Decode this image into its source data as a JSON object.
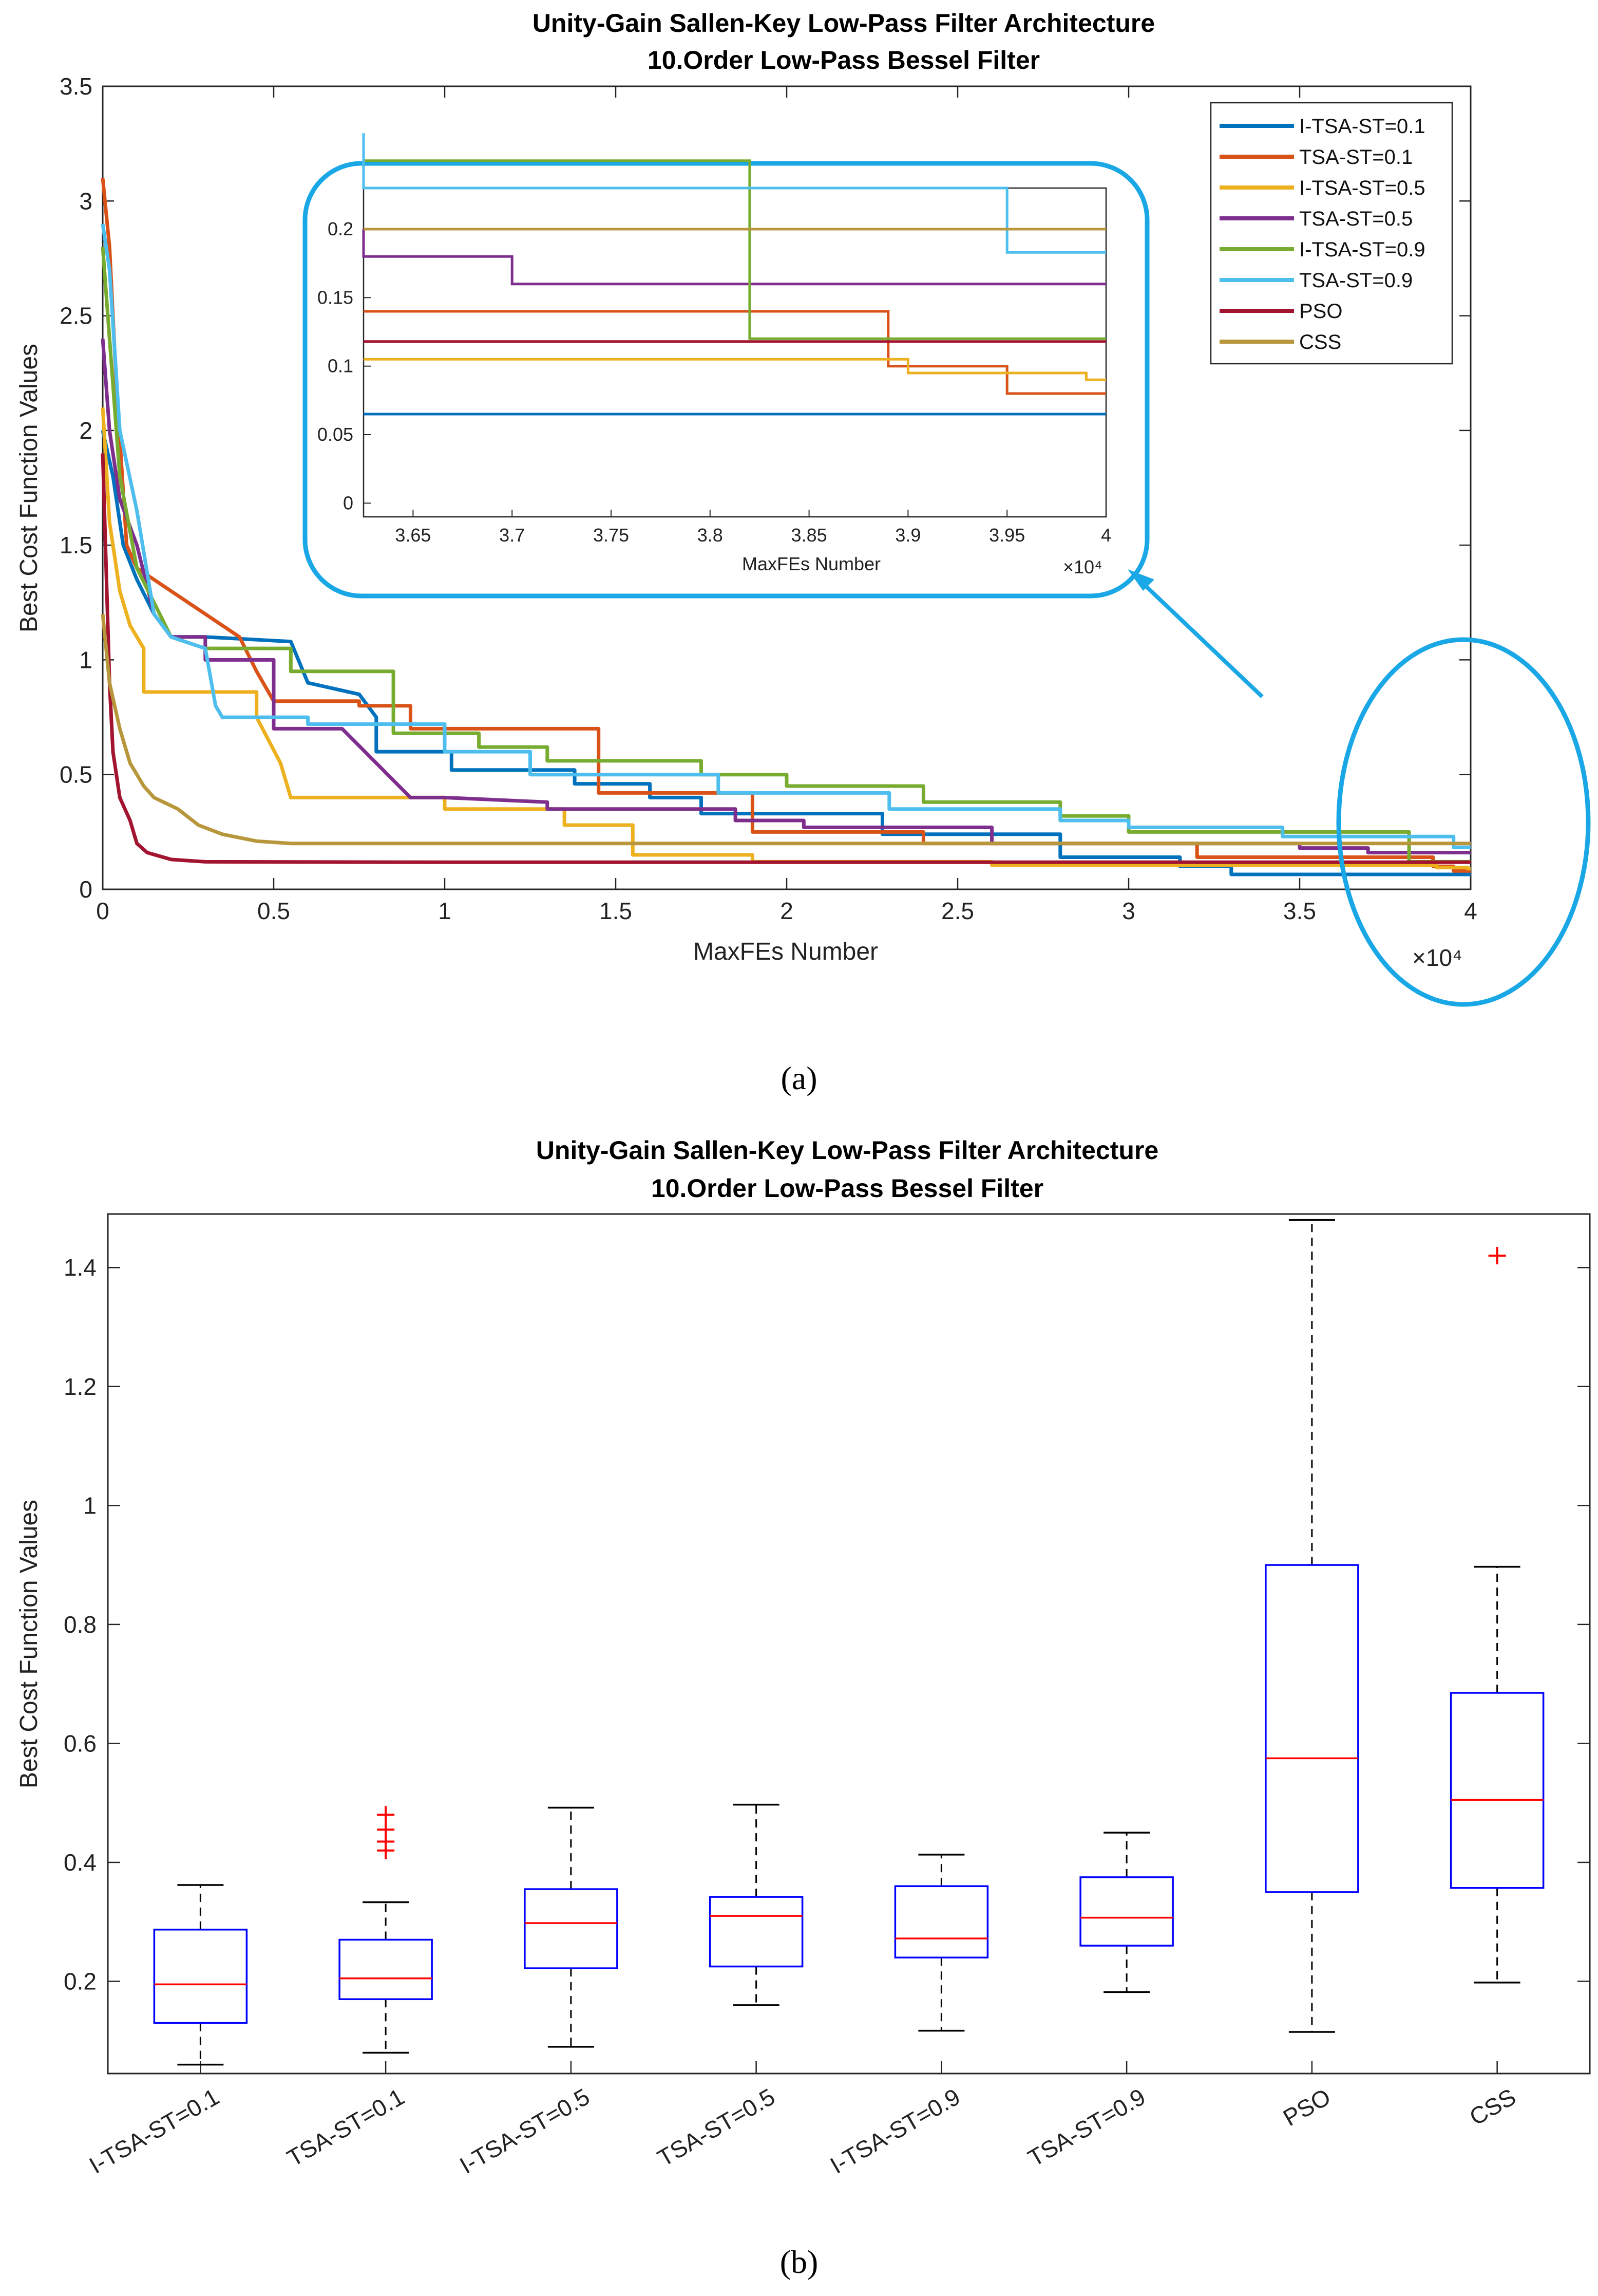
{
  "chart_data": [
    {
      "type": "line",
      "title": "Unity-Gain Sallen-Key Low-Pass Filter Architecture",
      "subtitle": "10.Order Low-Pass Bessel Filter",
      "xlabel": "MaxFEs Number",
      "ylabel": "Best Cost Function Values",
      "x_exponent_label": "×10⁴",
      "xlim": [
        0,
        4
      ],
      "ylim": [
        0,
        3.5
      ],
      "xticks": [
        "0",
        "0.5",
        "1",
        "1.5",
        "2",
        "2.5",
        "3",
        "3.5",
        "4"
      ],
      "yticks": [
        "0",
        "0.5",
        "1",
        "1.5",
        "2",
        "2.5",
        "3",
        "3.5"
      ],
      "legend_position": "top-right",
      "series": [
        {
          "name": "I-TSA-ST=0.1",
          "color": "#0072BD",
          "points": [
            [
              0,
              2.0
            ],
            [
              0.03,
              1.8
            ],
            [
              0.06,
              1.5
            ],
            [
              0.1,
              1.35
            ],
            [
              0.15,
              1.2
            ],
            [
              0.2,
              1.1
            ],
            [
              0.3,
              1.1
            ],
            [
              0.55,
              1.08
            ],
            [
              0.6,
              0.9
            ],
            [
              0.75,
              0.85
            ],
            [
              0.8,
              0.75
            ],
            [
              0.8,
              0.6
            ],
            [
              1.02,
              0.6
            ],
            [
              1.02,
              0.52
            ],
            [
              1.38,
              0.52
            ],
            [
              1.38,
              0.46
            ],
            [
              1.6,
              0.46
            ],
            [
              1.6,
              0.4
            ],
            [
              1.75,
              0.4
            ],
            [
              1.75,
              0.33
            ],
            [
              2.28,
              0.33
            ],
            [
              2.28,
              0.24
            ],
            [
              2.8,
              0.24
            ],
            [
              2.8,
              0.14
            ],
            [
              3.15,
              0.14
            ],
            [
              3.15,
              0.1
            ],
            [
              3.3,
              0.1
            ],
            [
              3.3,
              0.065
            ],
            [
              4.0,
              0.065
            ]
          ]
        },
        {
          "name": "TSA-ST=0.1",
          "color": "#D95319",
          "points": [
            [
              0,
              3.1
            ],
            [
              0.02,
              2.8
            ],
            [
              0.04,
              2.2
            ],
            [
              0.07,
              1.5
            ],
            [
              0.1,
              1.4
            ],
            [
              0.2,
              1.3
            ],
            [
              0.3,
              1.2
            ],
            [
              0.4,
              1.1
            ],
            [
              0.45,
              0.95
            ],
            [
              0.5,
              0.82
            ],
            [
              0.75,
              0.82
            ],
            [
              0.75,
              0.8
            ],
            [
              0.9,
              0.8
            ],
            [
              0.9,
              0.7
            ],
            [
              1.45,
              0.7
            ],
            [
              1.45,
              0.67
            ],
            [
              1.45,
              0.67
            ],
            [
              1.45,
              0.42
            ],
            [
              1.9,
              0.42
            ],
            [
              1.9,
              0.25
            ],
            [
              2.4,
              0.25
            ],
            [
              2.4,
              0.2
            ],
            [
              3.2,
              0.2
            ],
            [
              3.2,
              0.14
            ],
            [
              3.89,
              0.14
            ],
            [
              3.89,
              0.1
            ],
            [
              3.95,
              0.1
            ],
            [
              3.95,
              0.08
            ],
            [
              4.0,
              0.08
            ]
          ]
        },
        {
          "name": "I-TSA-ST=0.5",
          "color": "#EDB120",
          "points": [
            [
              0,
              2.1
            ],
            [
              0.02,
              1.6
            ],
            [
              0.05,
              1.3
            ],
            [
              0.08,
              1.15
            ],
            [
              0.12,
              1.05
            ],
            [
              0.12,
              0.86
            ],
            [
              0.45,
              0.86
            ],
            [
              0.45,
              0.75
            ],
            [
              0.52,
              0.55
            ],
            [
              0.55,
              0.4
            ],
            [
              0.6,
              0.4
            ],
            [
              1.0,
              0.4
            ],
            [
              1.0,
              0.35
            ],
            [
              1.35,
              0.35
            ],
            [
              1.35,
              0.28
            ],
            [
              1.55,
              0.28
            ],
            [
              1.55,
              0.15
            ],
            [
              1.9,
              0.15
            ],
            [
              1.9,
              0.12
            ],
            [
              2.6,
              0.12
            ],
            [
              2.6,
              0.105
            ],
            [
              3.9,
              0.105
            ],
            [
              3.9,
              0.095
            ],
            [
              3.99,
              0.095
            ],
            [
              3.99,
              0.09
            ],
            [
              4.0,
              0.09
            ]
          ]
        },
        {
          "name": "TSA-ST=0.5",
          "color": "#7E2F8E",
          "points": [
            [
              0,
              2.4
            ],
            [
              0.02,
              2.0
            ],
            [
              0.05,
              1.7
            ],
            [
              0.1,
              1.5
            ],
            [
              0.15,
              1.2
            ],
            [
              0.2,
              1.1
            ],
            [
              0.3,
              1.1
            ],
            [
              0.3,
              1.0
            ],
            [
              0.5,
              1.0
            ],
            [
              0.5,
              0.7
            ],
            [
              0.7,
              0.7
            ],
            [
              0.8,
              0.55
            ],
            [
              0.9,
              0.4
            ],
            [
              1.0,
              0.4
            ],
            [
              1.3,
              0.38
            ],
            [
              1.3,
              0.35
            ],
            [
              1.85,
              0.35
            ],
            [
              1.85,
              0.3
            ],
            [
              2.05,
              0.3
            ],
            [
              2.05,
              0.27
            ],
            [
              2.6,
              0.27
            ],
            [
              2.6,
              0.2
            ],
            [
              3.5,
              0.2
            ],
            [
              3.5,
              0.18
            ],
            [
              3.7,
              0.18
            ],
            [
              3.7,
              0.16
            ],
            [
              4.0,
              0.16
            ]
          ]
        },
        {
          "name": "I-TSA-ST=0.9",
          "color": "#77AC30",
          "points": [
            [
              0,
              2.8
            ],
            [
              0.02,
              2.4
            ],
            [
              0.05,
              1.8
            ],
            [
              0.1,
              1.4
            ],
            [
              0.2,
              1.1
            ],
            [
              0.3,
              1.05
            ],
            [
              0.55,
              1.05
            ],
            [
              0.55,
              0.95
            ],
            [
              0.85,
              0.95
            ],
            [
              0.85,
              0.68
            ],
            [
              1.1,
              0.68
            ],
            [
              1.1,
              0.62
            ],
            [
              1.3,
              0.62
            ],
            [
              1.3,
              0.56
            ],
            [
              1.75,
              0.56
            ],
            [
              1.75,
              0.5
            ],
            [
              2.0,
              0.5
            ],
            [
              2.0,
              0.45
            ],
            [
              2.4,
              0.45
            ],
            [
              2.4,
              0.38
            ],
            [
              2.8,
              0.38
            ],
            [
              2.8,
              0.32
            ],
            [
              3.0,
              0.32
            ],
            [
              3.0,
              0.25
            ],
            [
              3.82,
              0.25
            ],
            [
              3.82,
              0.185
            ],
            [
              3.82,
              0.12
            ],
            [
              4.0,
              0.12
            ]
          ]
        },
        {
          "name": "TSA-ST=0.9",
          "color": "#4DBEEE",
          "points": [
            [
              0,
              2.9
            ],
            [
              0.02,
              2.7
            ],
            [
              0.05,
              2.0
            ],
            [
              0.1,
              1.65
            ],
            [
              0.15,
              1.2
            ],
            [
              0.2,
              1.1
            ],
            [
              0.3,
              1.05
            ],
            [
              0.33,
              0.8
            ],
            [
              0.35,
              0.75
            ],
            [
              0.6,
              0.75
            ],
            [
              0.6,
              0.72
            ],
            [
              1.0,
              0.72
            ],
            [
              1.0,
              0.6
            ],
            [
              1.25,
              0.6
            ],
            [
              1.25,
              0.5
            ],
            [
              1.8,
              0.5
            ],
            [
              1.8,
              0.42
            ],
            [
              2.3,
              0.42
            ],
            [
              2.3,
              0.35
            ],
            [
              2.8,
              0.35
            ],
            [
              2.8,
              0.3
            ],
            [
              3.0,
              0.3
            ],
            [
              3.0,
              0.27
            ],
            [
              3.45,
              0.27
            ],
            [
              3.45,
              0.23
            ],
            [
              3.95,
              0.23
            ],
            [
              3.95,
              0.183
            ],
            [
              4.0,
              0.183
            ]
          ]
        },
        {
          "name": "PSO",
          "color": "#A2142F",
          "points": [
            [
              0,
              1.9
            ],
            [
              0.01,
              1.4
            ],
            [
              0.02,
              0.9
            ],
            [
              0.03,
              0.6
            ],
            [
              0.05,
              0.4
            ],
            [
              0.08,
              0.3
            ],
            [
              0.1,
              0.2
            ],
            [
              0.13,
              0.16
            ],
            [
              0.2,
              0.13
            ],
            [
              0.3,
              0.12
            ],
            [
              1.0,
              0.118
            ],
            [
              4.0,
              0.118
            ]
          ]
        },
        {
          "name": "CSS",
          "color": "#B8973C",
          "points": [
            [
              0,
              1.2
            ],
            [
              0.02,
              0.9
            ],
            [
              0.05,
              0.7
            ],
            [
              0.08,
              0.55
            ],
            [
              0.12,
              0.45
            ],
            [
              0.15,
              0.4
            ],
            [
              0.22,
              0.35
            ],
            [
              0.28,
              0.28
            ],
            [
              0.35,
              0.24
            ],
            [
              0.45,
              0.21
            ],
            [
              0.55,
              0.2
            ],
            [
              4.0,
              0.2
            ]
          ]
        }
      ],
      "inset": {
        "xlabel": "MaxFEs Number",
        "x_exponent_label": "×10⁴",
        "xlim": [
          3.625,
          4.0
        ],
        "ylim": [
          -0.01,
          0.23
        ],
        "xticks": [
          "3.65",
          "3.7",
          "3.75",
          "3.8",
          "3.85",
          "3.9",
          "3.95",
          "4"
        ],
        "yticks": [
          "0",
          "0.05",
          "0.1",
          "0.15",
          "0.2"
        ]
      }
    },
    {
      "type": "box",
      "title": "Unity-Gain Sallen-Key Low-Pass Filter Architecture",
      "subtitle": "10.Order Low-Pass Bessel Filter",
      "xlabel": "",
      "ylabel": "Best Cost Function Values",
      "ylim": [
        0.045,
        1.49
      ],
      "yticks": [
        "0.2",
        "0.4",
        "0.6",
        "0.8",
        "1",
        "1.2",
        "1.4"
      ],
      "categories": [
        "I-TSA-ST=0.1",
        "TSA-ST=0.1",
        "I-TSA-ST=0.5",
        "TSA-ST=0.5",
        "I-TSA-ST=0.9",
        "TSA-ST=0.9",
        "PSO",
        "CSS"
      ],
      "boxes": [
        {
          "whisker_low": 0.06,
          "q1": 0.13,
          "median": 0.195,
          "q3": 0.287,
          "whisker_high": 0.362,
          "outliers": []
        },
        {
          "whisker_low": 0.08,
          "q1": 0.17,
          "median": 0.205,
          "q3": 0.27,
          "whisker_high": 0.333,
          "outliers": [
            0.42,
            0.435,
            0.455,
            0.48
          ]
        },
        {
          "whisker_low": 0.09,
          "q1": 0.222,
          "median": 0.298,
          "q3": 0.355,
          "whisker_high": 0.492,
          "outliers": []
        },
        {
          "whisker_low": 0.16,
          "q1": 0.225,
          "median": 0.31,
          "q3": 0.342,
          "whisker_high": 0.497,
          "outliers": []
        },
        {
          "whisker_low": 0.117,
          "q1": 0.24,
          "median": 0.272,
          "q3": 0.36,
          "whisker_high": 0.413,
          "outliers": []
        },
        {
          "whisker_low": 0.182,
          "q1": 0.26,
          "median": 0.307,
          "q3": 0.375,
          "whisker_high": 0.45,
          "outliers": []
        },
        {
          "whisker_low": 0.115,
          "q1": 0.35,
          "median": 0.575,
          "q3": 0.9,
          "whisker_high": 1.48,
          "outliers": []
        },
        {
          "whisker_low": 0.198,
          "q1": 0.357,
          "median": 0.505,
          "q3": 0.685,
          "whisker_high": 0.897,
          "outliers": [
            1.42
          ]
        }
      ]
    }
  ],
  "captions": {
    "a": "(a)",
    "b": "(b)"
  },
  "colors": {
    "box_edge": "#0000FF",
    "median": "#FF0000",
    "outlier": "#FF0000",
    "highlight": "#1AA7E6"
  }
}
